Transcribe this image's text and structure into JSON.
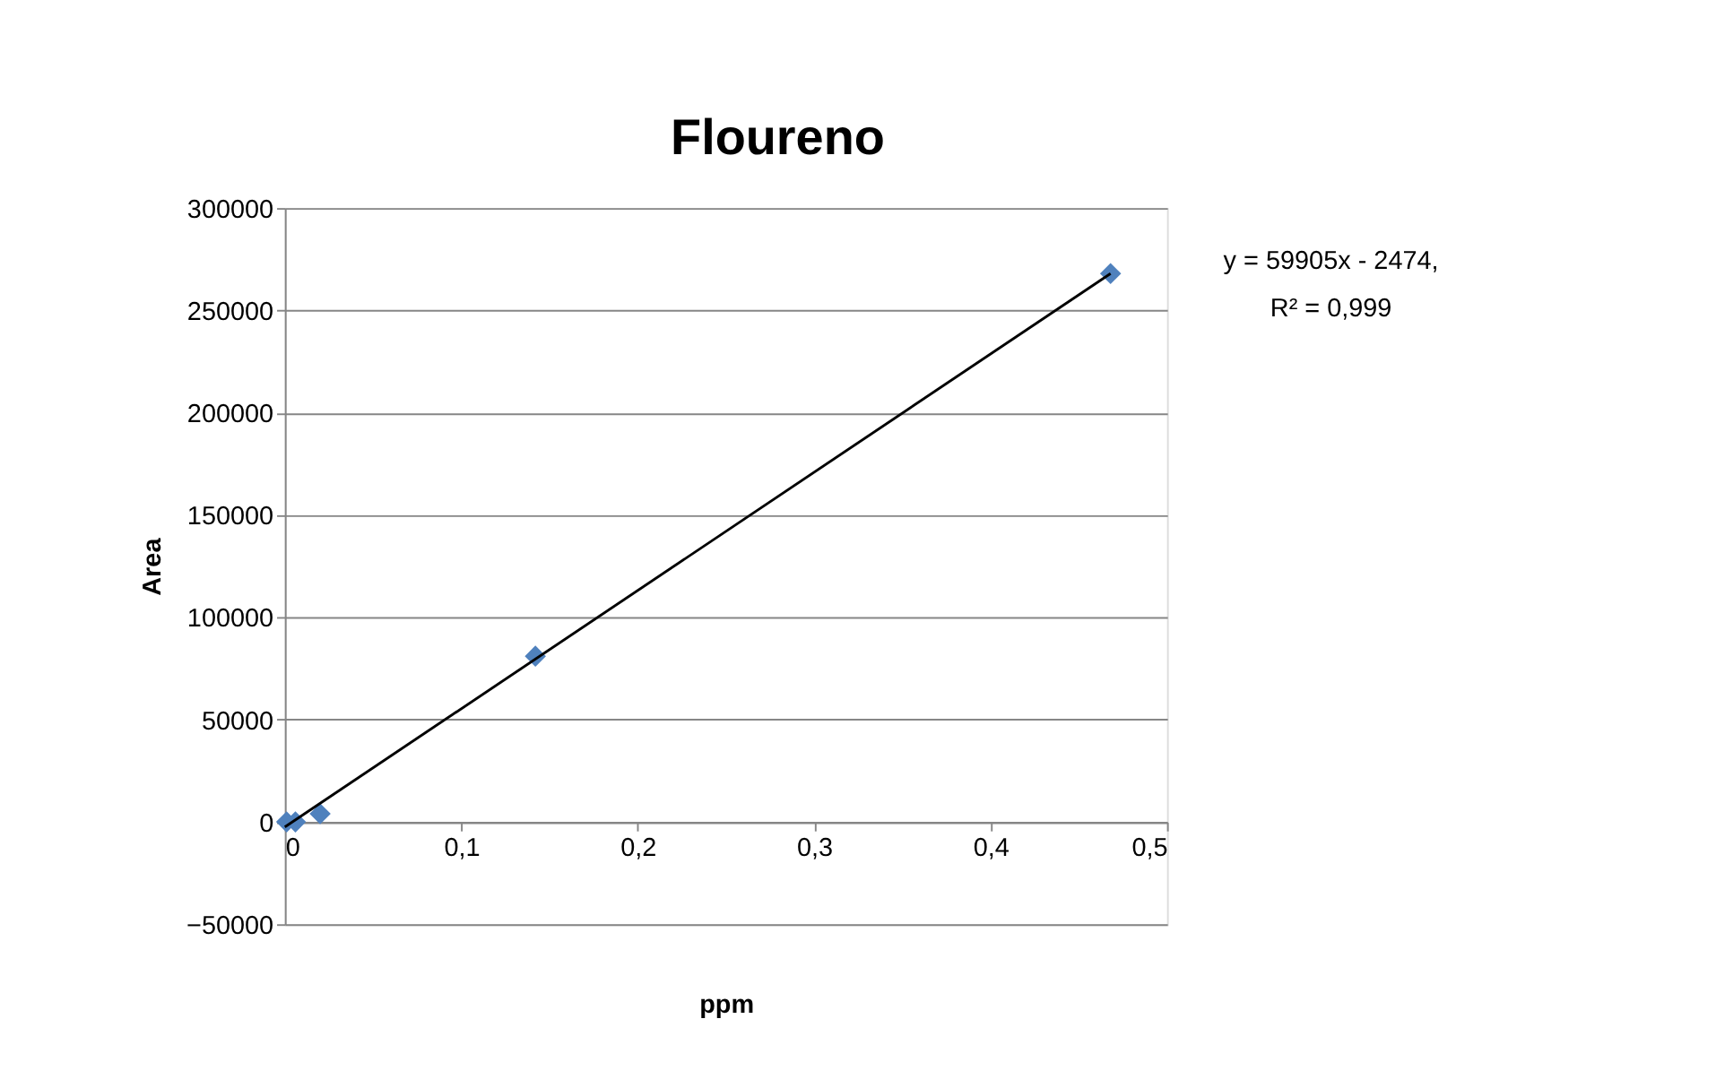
{
  "chart_data": {
    "type": "scatter",
    "title": "Floureno",
    "xlabel": "ppm",
    "ylabel": "Area",
    "x": [
      0.001,
      0.006,
      0.02,
      0.142,
      0.468
    ],
    "series": [
      {
        "color": "#4f81bd",
        "marker": "diamond",
        "values": [
          0,
          0,
          4000,
          81000,
          268000
        ]
      },
      {
        "type": "line",
        "color": "#000000",
        "marker": "none",
        "line_style": "solid",
        "x": [
          0,
          0.468
        ],
        "values": [
          -2500,
          268000
        ]
      }
    ],
    "xlim": [
      0,
      0.5
    ],
    "xticks": [
      {
        "value": 0,
        "label": "0"
      },
      {
        "value": 0.1,
        "label": "0,1"
      },
      {
        "value": 0.2,
        "label": "0,2"
      },
      {
        "value": 0.3,
        "label": "0,3"
      },
      {
        "value": 0.4,
        "label": "0,4"
      },
      {
        "value": 0.5,
        "label": "0,5"
      }
    ],
    "ylim": [
      -50000,
      300000
    ],
    "yticks": [
      -50000,
      0,
      50000,
      100000,
      150000,
      200000,
      250000,
      300000
    ],
    "grid": "y",
    "annotations": [
      "y = 59905x - 2474,",
      "R² = 0,999"
    ]
  }
}
